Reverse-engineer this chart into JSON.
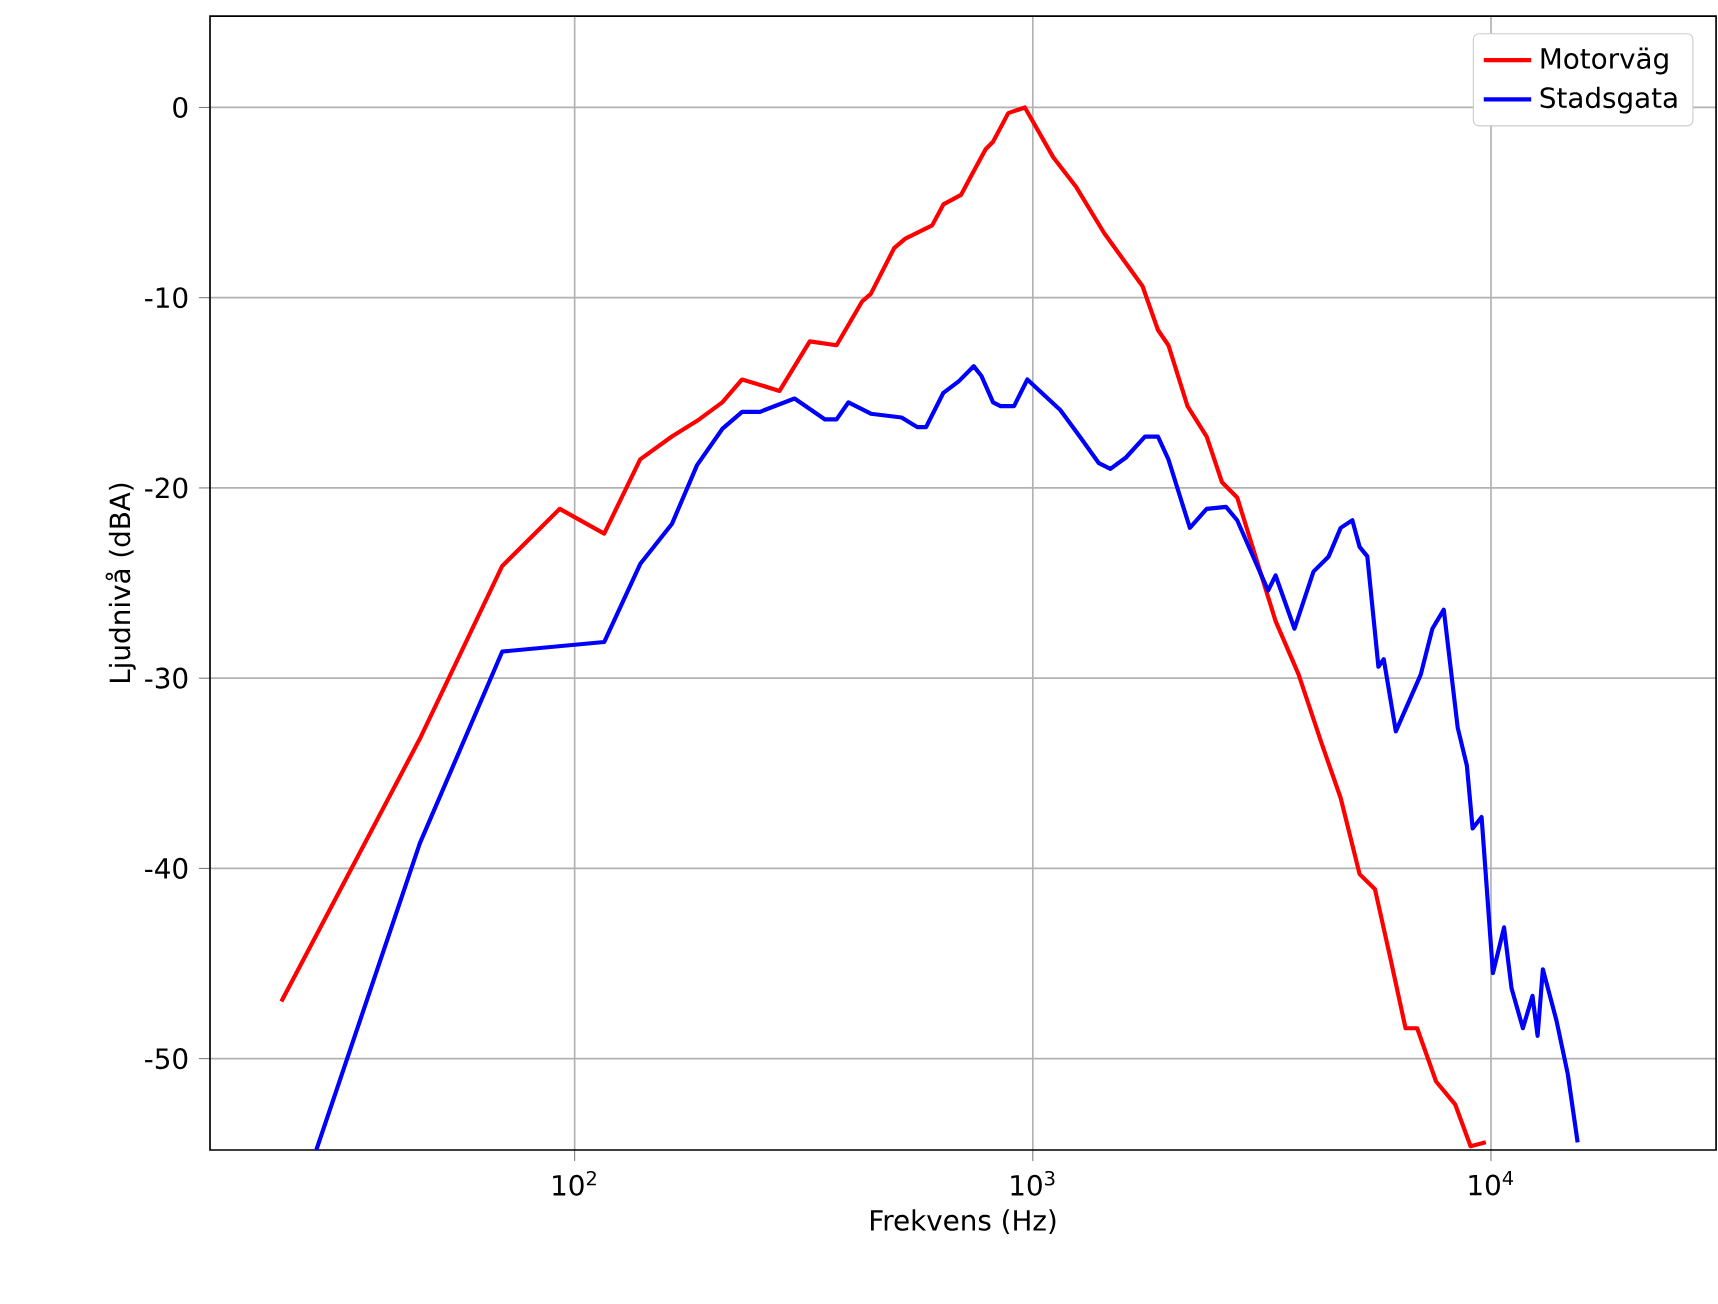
{
  "chart_data": {
    "type": "line",
    "xlabel": "Frekvens (Hz)",
    "ylabel": "Ljudnivå (dBA)",
    "log": "x",
    "grid": true,
    "legend": "top right",
    "xlim": [
      16,
      31000
    ],
    "ylim": [
      -54.8,
      4.8
    ],
    "xticks": [
      {
        "value": 100,
        "label": "10$^{2}$"
      },
      {
        "value": 1000,
        "label": "10$^{3}$"
      },
      {
        "value": 10000,
        "label": "10$^{4}$"
      }
    ],
    "yticks": [
      -50,
      -40,
      -30,
      -20,
      -10,
      0
    ],
    "series": [
      {
        "name": "Motorväg",
        "color": "#ff0000",
        "x": [
          22.9,
          45.9,
          69.5,
          92.8,
          116,
          139,
          163,
          187,
          210,
          232,
          280,
          326,
          373,
          424,
          443,
          498,
          527,
          603,
          638,
          697,
          730,
          789,
          819,
          884,
          961,
          1107,
          1245,
          1431,
          1736,
          1876,
          1977,
          2176,
          2396,
          2588,
          2793,
          3388,
          3803,
          4266,
          4698,
          5167,
          5584,
          6029,
          6510,
          6902,
          7590,
          8352,
          9026,
          9746
        ],
        "values": [
          -47.0,
          -33.2,
          -24.1,
          -21.1,
          -22.4,
          -18.5,
          -17.3,
          -16.4,
          -15.5,
          -14.3,
          -14.9,
          -12.3,
          -12.5,
          -10.2,
          -9.8,
          -7.4,
          -6.9,
          -6.2,
          -5.1,
          -4.6,
          -3.7,
          -2.2,
          -1.8,
          -0.3,
          0.0,
          -2.6,
          -4.2,
          -6.6,
          -9.4,
          -11.7,
          -12.5,
          -15.7,
          -17.3,
          -19.7,
          -20.5,
          -27.0,
          -29.8,
          -33.4,
          -36.3,
          -40.3,
          -41.1,
          -44.7,
          -48.4,
          -48.4,
          -51.2,
          -52.4,
          -54.6,
          -54.4
        ]
      },
      {
        "name": "Stadsgata",
        "color": "#0000ff",
        "x": [
          27.3,
          45.9,
          69.5,
          116,
          139,
          163,
          185,
          210,
          232,
          254,
          302,
          352,
          373,
          396,
          443,
          517,
          559,
          585,
          638,
          689,
          743,
          772,
          819,
          850,
          910,
          973,
          1148,
          1266,
          1394,
          1477,
          1597,
          1757,
          1876,
          1977,
          2202,
          2396,
          2641,
          2793,
          3263,
          3388,
          3726,
          4098,
          4424,
          4698,
          4982,
          5167,
          5372,
          5680,
          5834,
          6200,
          7030,
          7450,
          7890,
          8460,
          8860,
          9120,
          9540,
          10100,
          10680,
          11090,
          11740,
          12320,
          12640,
          12980,
          13900,
          14710,
          15460
        ],
        "values": [
          -54.8,
          -38.7,
          -28.6,
          -28.1,
          -24.0,
          -21.9,
          -18.8,
          -16.9,
          -16.0,
          -16.0,
          -15.3,
          -16.4,
          -16.4,
          -15.5,
          -16.1,
          -16.3,
          -16.8,
          -16.8,
          -15.0,
          -14.4,
          -13.6,
          -14.1,
          -15.5,
          -15.7,
          -15.7,
          -14.3,
          -15.9,
          -17.3,
          -18.7,
          -19.0,
          -18.4,
          -17.3,
          -17.3,
          -18.5,
          -22.1,
          -21.1,
          -21.0,
          -21.7,
          -25.4,
          -24.6,
          -27.4,
          -24.4,
          -23.6,
          -22.1,
          -21.7,
          -23.1,
          -23.6,
          -29.4,
          -29.0,
          -32.8,
          -29.8,
          -27.4,
          -26.4,
          -32.6,
          -34.6,
          -37.9,
          -37.3,
          -45.5,
          -43.1,
          -46.3,
          -48.4,
          -46.7,
          -48.8,
          -45.3,
          -48.0,
          -50.8,
          -54.4
        ]
      }
    ]
  }
}
